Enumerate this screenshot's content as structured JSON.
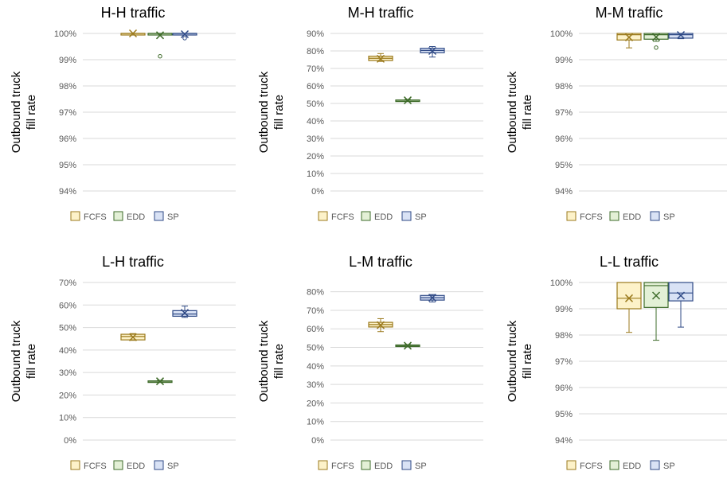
{
  "styles": {
    "series_stroke": {
      "FCFS": "#9b7a1d",
      "EDD": "#3e6b2a",
      "SP": "#2f4a86"
    },
    "series_fill": {
      "FCFS": "#fdf2c9",
      "EDD": "#e3f0d6",
      "SP": "#d9e2f5"
    },
    "grid_color": "#d9d9d9",
    "text_color": "#595959"
  },
  "chart_data": [
    {
      "type": "box",
      "title": "H-H traffic",
      "ylabel": [
        "Outbound truck",
        "fill rate"
      ],
      "yticks": [
        "94%",
        "95%",
        "96%",
        "97%",
        "98%",
        "99%",
        "100%"
      ],
      "ylim": [
        94,
        100
      ],
      "legend": [
        "FCFS",
        "EDD",
        "SP"
      ],
      "legend_position": "bottom",
      "series": [
        {
          "name": "FCFS",
          "min": 100,
          "q1": 100,
          "median": 100,
          "q3": 100,
          "max": 100,
          "mean": 100,
          "outliers": []
        },
        {
          "name": "EDD",
          "min": 100,
          "q1": 100,
          "median": 100,
          "q3": 100,
          "max": 100,
          "mean": 99.93,
          "outliers": [
            99.13
          ]
        },
        {
          "name": "SP",
          "min": 100,
          "q1": 100,
          "median": 100,
          "q3": 100,
          "max": 100,
          "mean": 99.97,
          "outliers": [
            99.82
          ]
        }
      ]
    },
    {
      "type": "box",
      "title": "M-H traffic",
      "ylabel": [
        "Outbound truck",
        "fill rate"
      ],
      "yticks": [
        "0%",
        "10%",
        "20%",
        "30%",
        "40%",
        "50%",
        "60%",
        "70%",
        "80%",
        "90%"
      ],
      "ylim": [
        0,
        90
      ],
      "legend": [
        "FCFS",
        "EDD",
        "SP"
      ],
      "legend_position": "bottom",
      "series": [
        {
          "name": "FCFS",
          "min": 74,
          "q1": 74.5,
          "median": 75.8,
          "q3": 77,
          "max": 78.5,
          "mean": 75.5,
          "outliers": []
        },
        {
          "name": "EDD",
          "min": 51.3,
          "q1": 51.5,
          "median": 51.8,
          "q3": 52,
          "max": 52.3,
          "mean": 51.8,
          "outliers": []
        },
        {
          "name": "SP",
          "min": 76.5,
          "q1": 79,
          "median": 80.3,
          "q3": 81.5,
          "max": 82.5,
          "mean": 80,
          "outliers": []
        }
      ]
    },
    {
      "type": "box",
      "title": "M-M traffic",
      "ylabel": [
        "Outbound truck",
        "fill rate"
      ],
      "yticks": [
        "94%",
        "95%",
        "96%",
        "97%",
        "98%",
        "99%",
        "100%"
      ],
      "ylim": [
        94,
        100
      ],
      "legend": [
        "FCFS",
        "EDD",
        "SP"
      ],
      "legend_position": "bottom",
      "series": [
        {
          "name": "FCFS",
          "min": 99.45,
          "q1": 99.75,
          "median": 99.95,
          "q3": 100,
          "max": 100,
          "mean": 99.85,
          "outliers": []
        },
        {
          "name": "EDD",
          "min": 99.7,
          "q1": 99.78,
          "median": 99.95,
          "q3": 100,
          "max": 100,
          "mean": 99.86,
          "outliers": [
            99.46
          ]
        },
        {
          "name": "SP",
          "min": 99.8,
          "q1": 99.82,
          "median": 99.95,
          "q3": 100,
          "max": 100,
          "mean": 99.94,
          "outliers": []
        }
      ]
    },
    {
      "type": "box",
      "title": "L-H traffic",
      "ylabel": [
        "Outbound truck",
        "fill rate"
      ],
      "yticks": [
        "0%",
        "10%",
        "20%",
        "30%",
        "40%",
        "50%",
        "60%",
        "70%"
      ],
      "ylim": [
        0,
        70
      ],
      "legend": [
        "FCFS",
        "EDD",
        "SP"
      ],
      "legend_position": "bottom",
      "series": [
        {
          "name": "FCFS",
          "min": 44.3,
          "q1": 44.5,
          "median": 46,
          "q3": 47,
          "max": 47.3,
          "mean": 45.7,
          "outliers": []
        },
        {
          "name": "EDD",
          "min": 25.8,
          "q1": 25.9,
          "median": 26.1,
          "q3": 26.3,
          "max": 26.5,
          "mean": 26.1,
          "outliers": []
        },
        {
          "name": "SP",
          "min": 54.5,
          "q1": 55,
          "median": 56,
          "q3": 57.5,
          "max": 59.5,
          "mean": 56.5,
          "outliers": []
        }
      ]
    },
    {
      "type": "box",
      "title": "L-M traffic",
      "ylabel": [
        "Outbound truck",
        "fill rate"
      ],
      "yticks": [
        "0%",
        "10%",
        "20%",
        "30%",
        "40%",
        "50%",
        "60%",
        "70%",
        "80%"
      ],
      "ylim": [
        0,
        85
      ],
      "legend": [
        "FCFS",
        "EDD",
        "SP"
      ],
      "legend_position": "bottom",
      "series": [
        {
          "name": "FCFS",
          "min": 58.5,
          "q1": 61,
          "median": 62.3,
          "q3": 63.5,
          "max": 65.5,
          "mean": 62,
          "outliers": []
        },
        {
          "name": "EDD",
          "min": 50.3,
          "q1": 50.5,
          "median": 50.8,
          "q3": 51.3,
          "max": 51.5,
          "mean": 50.9,
          "outliers": []
        },
        {
          "name": "SP",
          "min": 74.5,
          "q1": 75.5,
          "median": 76.8,
          "q3": 78,
          "max": 78.5,
          "mean": 76.8,
          "outliers": []
        }
      ]
    },
    {
      "type": "box",
      "title": "L-L traffic",
      "ylabel": [
        "Outbound truck",
        "fill rate"
      ],
      "yticks": [
        "94%",
        "95%",
        "96%",
        "97%",
        "98%",
        "99%",
        "100%"
      ],
      "ylim": [
        94,
        100
      ],
      "legend": [
        "FCFS",
        "EDD",
        "SP"
      ],
      "legend_position": "bottom",
      "series": [
        {
          "name": "FCFS",
          "min": 98.1,
          "q1": 99,
          "median": 99.4,
          "q3": 100,
          "max": 100,
          "mean": 99.4,
          "outliers": []
        },
        {
          "name": "EDD",
          "min": 97.8,
          "q1": 99.05,
          "median": 99.88,
          "q3": 100,
          "max": 100,
          "mean": 99.5,
          "outliers": []
        },
        {
          "name": "SP",
          "min": 98.3,
          "q1": 99.3,
          "median": 99.6,
          "q3": 100,
          "max": 100,
          "mean": 99.5,
          "outliers": []
        }
      ]
    }
  ]
}
